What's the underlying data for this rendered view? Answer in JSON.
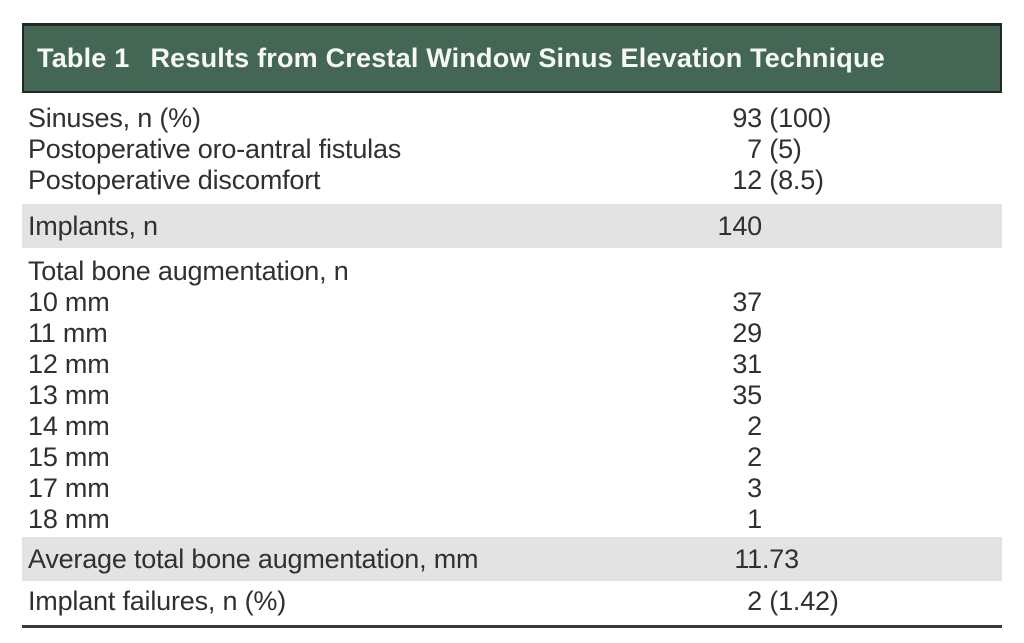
{
  "table": {
    "label": "Table 1",
    "title": "Results from Crestal Window Sinus Elevation Technique",
    "rows": [
      {
        "label": "Sinuses, n (%)",
        "value": "93 (100)",
        "shaded": false
      },
      {
        "label": "Postoperative oro-antral fistulas",
        "value": "7 (5)",
        "shaded": false
      },
      {
        "label": "Postoperative discomfort",
        "value": "12 (8.5)",
        "shaded": false
      },
      {
        "label": "Implants, n",
        "value": "140",
        "shaded": true
      },
      {
        "label": "Total bone augmentation, n",
        "value": "",
        "shaded": false
      },
      {
        "label": "10 mm",
        "value": "37",
        "shaded": false
      },
      {
        "label": "11 mm",
        "value": "29",
        "shaded": false
      },
      {
        "label": "12 mm",
        "value": "31",
        "shaded": false
      },
      {
        "label": "13 mm",
        "value": "35",
        "shaded": false
      },
      {
        "label": "14 mm",
        "value": "2",
        "shaded": false
      },
      {
        "label": "15 mm",
        "value": "2",
        "shaded": false
      },
      {
        "label": "17 mm",
        "value": "3",
        "shaded": false
      },
      {
        "label": "18 mm",
        "value": "1",
        "shaded": false
      },
      {
        "label": "Average total bone augmentation, mm",
        "value": "11.73",
        "shaded": true
      },
      {
        "label": "Implant failures, n (%)",
        "value": "2 (1.42)",
        "shaded": false
      }
    ]
  },
  "colors": {
    "header_bg": "#446654",
    "header_text": "#f6f8f4",
    "shaded_row_bg": "#e3e3e3",
    "text": "#303030",
    "rule": "#3a3a3a"
  }
}
